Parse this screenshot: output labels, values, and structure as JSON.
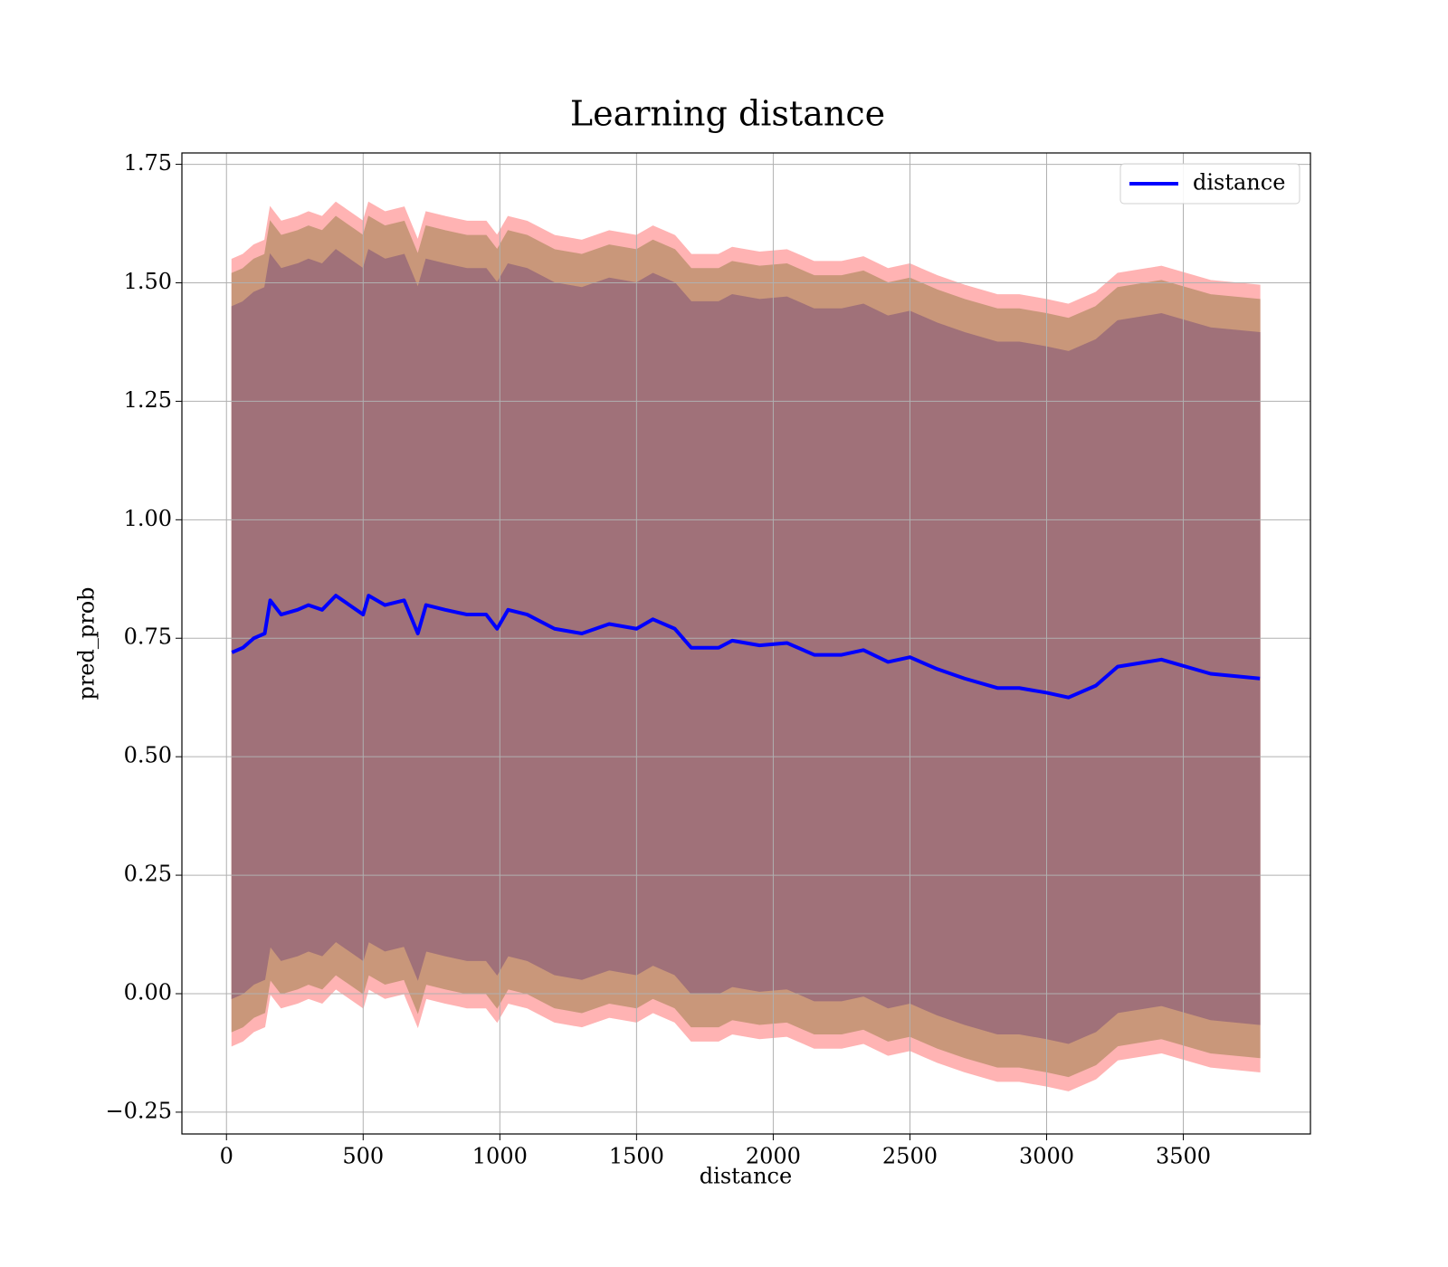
{
  "chart_data": {
    "type": "line",
    "title": "Learning distance",
    "xlabel": "distance",
    "ylabel": "pred_prob",
    "x": [
      20,
      60,
      100,
      140,
      160,
      200,
      260,
      300,
      350,
      400,
      450,
      500,
      520,
      580,
      650,
      700,
      730,
      800,
      880,
      950,
      990,
      1030,
      1100,
      1200,
      1300,
      1400,
      1500,
      1560,
      1640,
      1700,
      1800,
      1850,
      1950,
      2050,
      2150,
      2250,
      2330,
      2420,
      2500,
      2600,
      2700,
      2820,
      2900,
      3000,
      3080,
      3180,
      3260,
      3420,
      3600,
      3780
    ],
    "series": [
      {
        "name": "distance",
        "color": "#0000ff",
        "values": [
          0.72,
          0.73,
          0.75,
          0.76,
          0.83,
          0.8,
          0.81,
          0.82,
          0.81,
          0.84,
          0.82,
          0.8,
          0.84,
          0.82,
          0.83,
          0.76,
          0.82,
          0.81,
          0.8,
          0.8,
          0.77,
          0.81,
          0.8,
          0.77,
          0.76,
          0.78,
          0.77,
          0.79,
          0.77,
          0.73,
          0.73,
          0.745,
          0.735,
          0.74,
          0.715,
          0.715,
          0.725,
          0.7,
          0.71,
          0.685,
          0.665,
          0.645,
          0.645,
          0.635,
          0.625,
          0.65,
          0.69,
          0.705,
          0.675,
          0.665
        ]
      }
    ],
    "bands": [
      {
        "color": "#ffb3b3",
        "upper": [
          1.55,
          1.56,
          1.58,
          1.59,
          1.66,
          1.63,
          1.64,
          1.65,
          1.64,
          1.67,
          1.65,
          1.63,
          1.67,
          1.65,
          1.66,
          1.59,
          1.65,
          1.64,
          1.63,
          1.63,
          1.6,
          1.64,
          1.63,
          1.6,
          1.59,
          1.61,
          1.6,
          1.62,
          1.6,
          1.56,
          1.56,
          1.575,
          1.565,
          1.57,
          1.545,
          1.545,
          1.555,
          1.53,
          1.54,
          1.515,
          1.495,
          1.475,
          1.475,
          1.465,
          1.455,
          1.48,
          1.52,
          1.535,
          1.505,
          1.495
        ],
        "lower": [
          -0.11,
          -0.1,
          -0.08,
          -0.07,
          0.0,
          -0.03,
          -0.02,
          -0.01,
          -0.02,
          0.01,
          -0.01,
          -0.03,
          0.01,
          -0.01,
          0.0,
          -0.07,
          -0.01,
          -0.02,
          -0.03,
          -0.03,
          -0.06,
          -0.02,
          -0.03,
          -0.06,
          -0.07,
          -0.05,
          -0.06,
          -0.04,
          -0.06,
          -0.1,
          -0.1,
          -0.085,
          -0.095,
          -0.09,
          -0.115,
          -0.115,
          -0.105,
          -0.13,
          -0.12,
          -0.145,
          -0.165,
          -0.185,
          -0.185,
          -0.195,
          -0.205,
          -0.18,
          -0.14,
          -0.125,
          -0.155,
          -0.165
        ]
      },
      {
        "color": "#c9977a",
        "upper": [
          1.52,
          1.53,
          1.55,
          1.56,
          1.63,
          1.6,
          1.61,
          1.62,
          1.61,
          1.64,
          1.62,
          1.6,
          1.64,
          1.62,
          1.63,
          1.56,
          1.62,
          1.61,
          1.6,
          1.6,
          1.57,
          1.61,
          1.6,
          1.57,
          1.56,
          1.58,
          1.57,
          1.59,
          1.57,
          1.53,
          1.53,
          1.545,
          1.535,
          1.54,
          1.515,
          1.515,
          1.525,
          1.5,
          1.51,
          1.485,
          1.465,
          1.445,
          1.445,
          1.435,
          1.425,
          1.45,
          1.49,
          1.505,
          1.475,
          1.465
        ],
        "lower": [
          -0.08,
          -0.07,
          -0.05,
          -0.04,
          0.03,
          0.0,
          0.01,
          0.02,
          0.01,
          0.04,
          0.02,
          0.0,
          0.04,
          0.02,
          0.03,
          -0.04,
          0.02,
          0.01,
          0.0,
          0.0,
          -0.03,
          0.01,
          0.0,
          -0.03,
          -0.04,
          -0.02,
          -0.03,
          -0.01,
          -0.03,
          -0.07,
          -0.07,
          -0.055,
          -0.065,
          -0.06,
          -0.085,
          -0.085,
          -0.075,
          -0.1,
          -0.09,
          -0.115,
          -0.135,
          -0.155,
          -0.155,
          -0.165,
          -0.175,
          -0.15,
          -0.11,
          -0.095,
          -0.125,
          -0.135
        ]
      },
      {
        "color": "#a07179",
        "upper": [
          1.45,
          1.46,
          1.48,
          1.49,
          1.56,
          1.53,
          1.54,
          1.55,
          1.54,
          1.57,
          1.55,
          1.53,
          1.57,
          1.55,
          1.56,
          1.49,
          1.55,
          1.54,
          1.53,
          1.53,
          1.5,
          1.54,
          1.53,
          1.5,
          1.49,
          1.51,
          1.5,
          1.52,
          1.5,
          1.46,
          1.46,
          1.475,
          1.465,
          1.47,
          1.445,
          1.445,
          1.455,
          1.43,
          1.44,
          1.415,
          1.395,
          1.375,
          1.375,
          1.365,
          1.355,
          1.38,
          1.42,
          1.435,
          1.405,
          1.395
        ],
        "lower": [
          -0.01,
          0.0,
          0.02,
          0.03,
          0.1,
          0.07,
          0.08,
          0.09,
          0.08,
          0.11,
          0.09,
          0.07,
          0.11,
          0.09,
          0.1,
          0.03,
          0.09,
          0.08,
          0.07,
          0.07,
          0.04,
          0.08,
          0.07,
          0.04,
          0.03,
          0.05,
          0.04,
          0.06,
          0.04,
          0.0,
          0.0,
          0.015,
          0.005,
          0.01,
          -0.015,
          -0.015,
          -0.005,
          -0.03,
          -0.02,
          -0.045,
          -0.065,
          -0.085,
          -0.085,
          -0.095,
          -0.105,
          -0.08,
          -0.04,
          -0.025,
          -0.055,
          -0.065
        ]
      }
    ],
    "xlim": [
      -163,
      3965
    ],
    "ylim": [
      -0.296,
      1.774
    ],
    "xticks": [
      0,
      500,
      1000,
      1500,
      2000,
      2500,
      3000,
      3500
    ],
    "yticks": [
      {
        "value": -0.25,
        "label": "−0.25"
      },
      {
        "value": 0,
        "label": "0.00"
      },
      {
        "value": 0.25,
        "label": "0.25"
      },
      {
        "value": 0.5,
        "label": "0.50"
      },
      {
        "value": 0.75,
        "label": "0.75"
      },
      {
        "value": 1,
        "label": "1.00"
      },
      {
        "value": 1.25,
        "label": "1.25"
      },
      {
        "value": 1.5,
        "label": "1.50"
      },
      {
        "value": 1.75,
        "label": "1.75"
      }
    ],
    "grid": true,
    "legend": "upper right"
  }
}
